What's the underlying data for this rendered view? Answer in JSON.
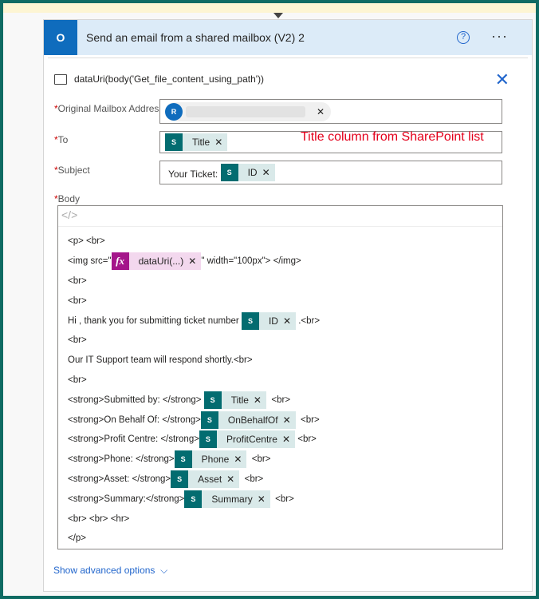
{
  "header": {
    "title": "Send an email from a shared mailbox (V2) 2",
    "app_icon": "outlook-icon",
    "help_icon": "help-icon",
    "more_icon": "more-icon"
  },
  "subheader": {
    "text": "dataUri(body('Get_file_content_using_path'))"
  },
  "fields": {
    "mailbox": {
      "label": "Original Mailbox Address",
      "avatar": "R"
    },
    "to": {
      "label": "To",
      "token": "Title"
    },
    "subject": {
      "label": "Subject",
      "prefix": "Your Ticket: ",
      "token": "ID"
    },
    "body": {
      "label": "Body"
    }
  },
  "annotation": "Title column from SharePoint list",
  "body_lines": [
    {
      "pre": "<p> <br>"
    },
    {
      "pre": "<img src=\"",
      "fx": "dataUri(...)",
      "post": "\" width=\"100px\"> </img>"
    },
    {
      "pre": "<br>"
    },
    {
      "pre": "<br>"
    },
    {
      "pre": "Hi , thank you for submitting ticket number ",
      "token": "ID",
      "post": " .<br>"
    },
    {
      "pre": "<br>"
    },
    {
      "pre": "Our IT Support team will respond shortly.<br>"
    },
    {
      "pre": "<br>"
    },
    {
      "pre": "<strong>Submitted by: </strong> ",
      "token": "Title",
      "post": "  <br>"
    },
    {
      "pre": "<strong>On Behalf Of: </strong>",
      "token": "OnBehalfOf",
      "post": "  <br>"
    },
    {
      "pre": "<strong>Profit Centre: </strong>",
      "token": "ProfitCentre",
      "post": " <br>"
    },
    {
      "pre": "<strong>Phone: </strong>",
      "token": "Phone",
      "post": "  <br>"
    },
    {
      "pre": "<strong>Asset: </strong>",
      "token": "Asset",
      "post": "  <br>"
    },
    {
      "pre": "<strong>Summary:</strong>",
      "token": "Summary",
      "post": "  <br>"
    },
    {
      "pre": "<br> <br> <hr>"
    },
    {
      "pre": "</p>"
    }
  ],
  "advanced_label": "Show advanced options",
  "colors": {
    "accent": "#0f6cbd",
    "sharepoint": "#036c70",
    "expression": "#a4168a",
    "annotation": "#e3001b",
    "border": "#0f6b63"
  }
}
